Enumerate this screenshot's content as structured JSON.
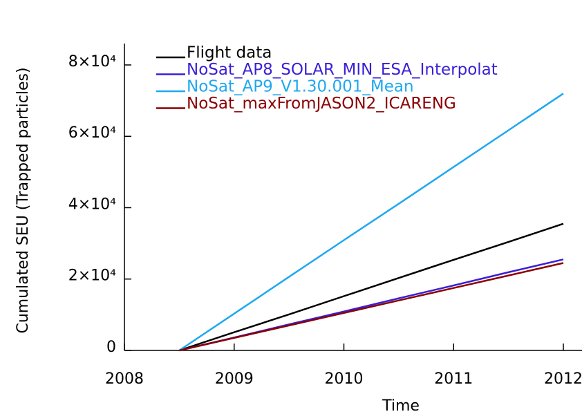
{
  "chart_data": {
    "type": "line",
    "x_label": "Time",
    "y_label": "Cumulated SEU (Trapped particles)",
    "x": [
      2008.5,
      2009,
      2009.5,
      2010,
      2010.5,
      2011,
      2011.5,
      2012
    ],
    "series": [
      {
        "name": "Flight data",
        "color": "#000000",
        "values": [
          0,
          5100,
          10100,
          15200,
          20300,
          25400,
          30400,
          35500
        ]
      },
      {
        "name": "NoSat_AP8_SOLAR_MIN_ESA_Interpolat",
        "color": "#3a1fd6",
        "values": [
          0,
          3600,
          7300,
          10900,
          14600,
          18200,
          21900,
          25500
        ]
      },
      {
        "name": "NoSat_AP9_V1.30.001_Mean",
        "color": "#1ea8f0",
        "values": [
          0,
          10300,
          20600,
          30900,
          41100,
          51400,
          61700,
          72000
        ]
      },
      {
        "name": "NoSat_maxFromJASON2_ICARENG",
        "color": "#8b0000",
        "values": [
          0,
          3500,
          7000,
          10500,
          14000,
          17500,
          21000,
          24500
        ]
      }
    ],
    "xlim": [
      2008,
      2012
    ],
    "xticks": [
      2008,
      2009,
      2010,
      2011,
      2012
    ],
    "ylim": [
      0,
      86000
    ],
    "yticks": [
      0,
      {
        "value": 20000,
        "label": "2×10⁴"
      },
      {
        "value": 40000,
        "label": "4×10⁴"
      },
      {
        "value": 60000,
        "label": "6×10⁴"
      },
      {
        "value": 80000,
        "label": "8×10⁴"
      }
    ],
    "legend": "upper left"
  }
}
